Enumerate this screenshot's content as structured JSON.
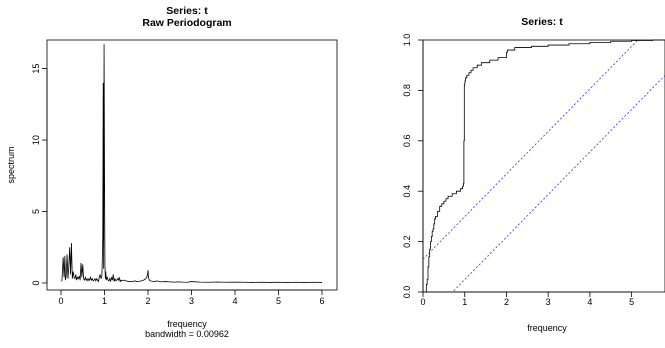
{
  "chart_data": [
    {
      "type": "line",
      "title": "Series: t",
      "subtitle": "Raw Periodogram",
      "xlabel": "frequency",
      "xlabel_sub": "bandwidth = 0.00962",
      "ylabel": "spectrum",
      "xlim": [
        0,
        6
      ],
      "ylim": [
        0,
        17
      ],
      "x_ticks": [
        0,
        1,
        2,
        3,
        4,
        5,
        6
      ],
      "y_ticks": [
        0,
        5,
        10,
        15
      ],
      "grid": false,
      "line_color": "#000000",
      "series": [
        {
          "x": [
            0.02,
            0.05,
            0.07,
            0.09,
            0.1,
            0.12,
            0.14,
            0.16,
            0.18,
            0.2,
            0.22,
            0.24,
            0.26,
            0.28,
            0.3,
            0.32,
            0.34,
            0.36,
            0.38,
            0.4,
            0.42,
            0.44,
            0.46,
            0.48,
            0.5,
            0.52,
            0.54,
            0.56,
            0.58,
            0.6,
            0.62,
            0.64,
            0.66,
            0.68,
            0.7,
            0.72,
            0.74,
            0.76,
            0.78,
            0.8,
            0.82,
            0.84,
            0.86,
            0.88,
            0.9,
            0.92,
            0.94,
            0.96,
            0.97,
            0.98,
            0.99,
            1.0,
            1.01,
            1.02,
            1.03,
            1.04,
            1.06,
            1.08,
            1.1,
            1.12,
            1.14,
            1.16,
            1.18,
            1.2,
            1.22,
            1.24,
            1.26,
            1.28,
            1.3,
            1.32,
            1.34,
            1.36,
            1.38,
            1.4,
            1.45,
            1.5,
            1.55,
            1.6,
            1.65,
            1.7,
            1.75,
            1.8,
            1.85,
            1.9,
            1.95,
            1.97,
            1.99,
            2.0,
            2.01,
            2.03,
            2.05,
            2.1,
            2.15,
            2.2,
            2.3,
            2.4,
            2.5,
            2.6,
            2.7,
            2.8,
            2.9,
            3.0,
            3.2,
            3.4,
            3.6,
            3.8,
            4.0,
            4.2,
            4.4,
            4.6,
            4.8,
            5.0,
            5.2,
            5.4,
            5.6,
            5.8,
            6.0
          ],
          "y": [
            0.1,
            1.8,
            0.4,
            1.9,
            0.2,
            0.5,
            2.0,
            0.3,
            1.2,
            2.5,
            0.6,
            2.8,
            0.3,
            0.8,
            0.4,
            0.3,
            0.6,
            0.2,
            0.4,
            0.3,
            0.5,
            0.2,
            1.4,
            0.4,
            1.3,
            0.3,
            0.2,
            0.4,
            0.2,
            0.3,
            0.15,
            0.3,
            0.2,
            0.4,
            0.2,
            0.3,
            0.15,
            0.2,
            0.3,
            0.15,
            0.3,
            0.2,
            0.1,
            0.4,
            0.6,
            0.3,
            0.5,
            3.0,
            14.0,
            1.0,
            16.7,
            8.0,
            1.2,
            0.3,
            0.8,
            0.2,
            0.4,
            0.2,
            0.15,
            0.3,
            0.1,
            0.4,
            0.2,
            0.6,
            0.1,
            0.3,
            0.15,
            0.2,
            0.3,
            0.2,
            0.4,
            0.1,
            0.2,
            0.15,
            0.2,
            0.15,
            0.1,
            0.12,
            0.1,
            0.15,
            0.1,
            0.12,
            0.15,
            0.2,
            0.3,
            0.4,
            0.6,
            0.9,
            0.4,
            0.2,
            0.15,
            0.12,
            0.1,
            0.15,
            0.08,
            0.1,
            0.08,
            0.06,
            0.08,
            0.06,
            0.05,
            0.1,
            0.06,
            0.05,
            0.07,
            0.05,
            0.06,
            0.05,
            0.04,
            0.05,
            0.04,
            0.05,
            0.04,
            0.05,
            0.04,
            0.05,
            0.04
          ]
        }
      ]
    },
    {
      "type": "line",
      "title": "Series:  t",
      "xlabel": "frequency",
      "ylabel": "",
      "xlim": [
        0,
        5.8
      ],
      "ylim": [
        0,
        1
      ],
      "x_ticks": [
        0,
        1,
        2,
        3,
        4,
        5
      ],
      "y_ticks": [
        0.0,
        0.2,
        0.4,
        0.6,
        0.8,
        1.0
      ],
      "y_tick_labels": [
        "0.0",
        "0.2",
        "0.4",
        "0.6",
        "0.8",
        "1.0"
      ],
      "grid": false,
      "line_color": "#000000",
      "band_color": "#3333ff",
      "series": [
        {
          "x": [
            0.0,
            0.05,
            0.08,
            0.1,
            0.12,
            0.14,
            0.16,
            0.18,
            0.2,
            0.22,
            0.24,
            0.26,
            0.28,
            0.3,
            0.35,
            0.4,
            0.45,
            0.5,
            0.55,
            0.6,
            0.7,
            0.8,
            0.9,
            0.95,
            0.97,
            0.98,
            0.99,
            1.0,
            1.01,
            1.02,
            1.05,
            1.1,
            1.15,
            1.2,
            1.3,
            1.4,
            1.5,
            1.6,
            1.7,
            1.8,
            1.9,
            1.98,
            2.0,
            2.02,
            2.1,
            2.2,
            2.4,
            2.6,
            3.0,
            3.5,
            4.0,
            4.5,
            5.0,
            5.5,
            5.8
          ],
          "y": [
            0.0,
            0.0,
            0.03,
            0.05,
            0.1,
            0.14,
            0.17,
            0.2,
            0.22,
            0.24,
            0.25,
            0.27,
            0.29,
            0.3,
            0.32,
            0.34,
            0.35,
            0.36,
            0.37,
            0.38,
            0.39,
            0.4,
            0.41,
            0.42,
            0.43,
            0.6,
            0.82,
            0.83,
            0.84,
            0.85,
            0.86,
            0.87,
            0.88,
            0.89,
            0.9,
            0.91,
            0.91,
            0.92,
            0.92,
            0.93,
            0.93,
            0.93,
            0.95,
            0.96,
            0.96,
            0.97,
            0.97,
            0.975,
            0.98,
            0.985,
            0.99,
            0.995,
            0.998,
            1.0,
            1.0
          ]
        }
      ],
      "bands": [
        {
          "x": [
            0.0,
            5.8
          ],
          "y": [
            0.13,
            1.11
          ]
        },
        {
          "x": [
            0.0,
            5.8
          ],
          "y": [
            -0.12,
            0.86
          ]
        }
      ]
    }
  ]
}
